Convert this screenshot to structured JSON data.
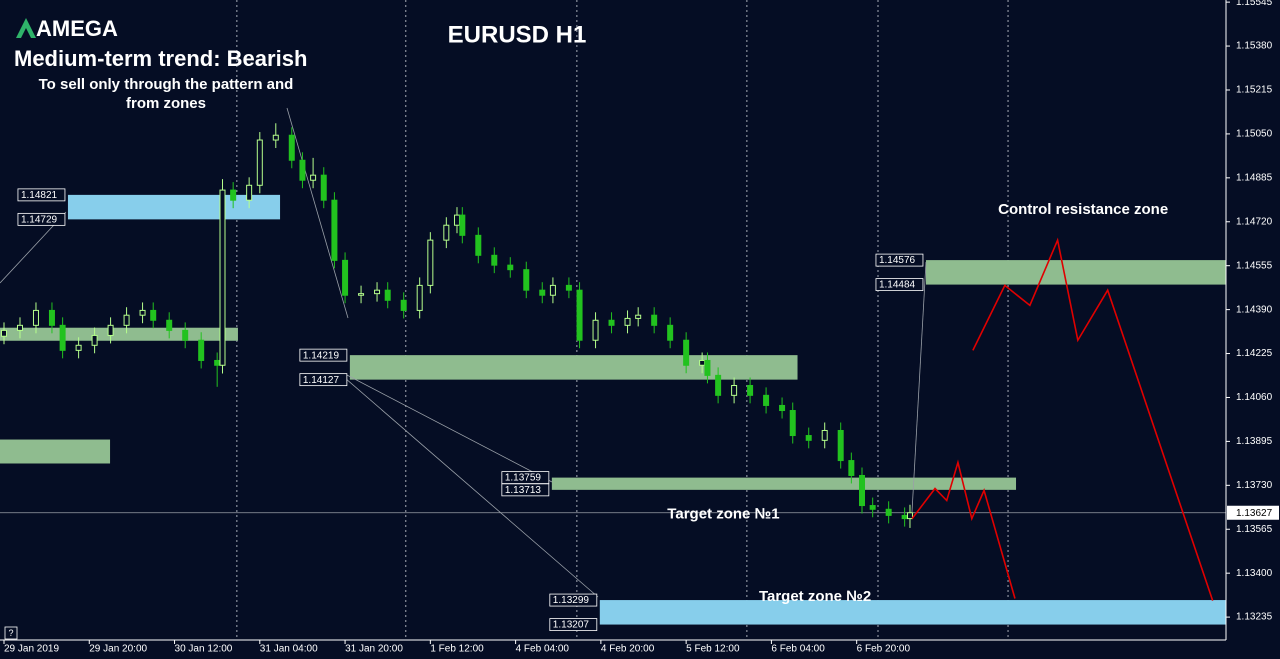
{
  "chart_data": {
    "type": "candlestick",
    "brand": "AMEGA",
    "title": "EURUSD H1",
    "trend": "Medium-term trend: Bearish",
    "subtitle_lines": [
      "To sell only through the pattern and",
      "from zones"
    ],
    "up_color": "#b6ff8c",
    "down_color": "#22c21f",
    "grid": true,
    "xlim": [
      -0.75,
      229.3
    ],
    "ylim": [
      1.13149,
      1.15553
    ],
    "xticks": [
      {
        "value": 0,
        "label": "29 Jan 2019"
      },
      {
        "value": 16,
        "label": "29 Jan 20:00"
      },
      {
        "value": 32,
        "label": "30 Jan 12:00"
      },
      {
        "value": 48,
        "label": "31 Jan 04:00"
      },
      {
        "value": 64,
        "label": "31 Jan 20:00"
      },
      {
        "value": 80,
        "label": "1 Feb 12:00"
      },
      {
        "value": 96,
        "label": "4 Feb 04:00"
      },
      {
        "value": 112,
        "label": "4 Feb 20:00"
      },
      {
        "value": 128,
        "label": "5 Feb 12:00"
      },
      {
        "value": 144,
        "label": "6 Feb 04:00"
      },
      {
        "value": 160,
        "label": "6 Feb 20:00"
      }
    ],
    "yticks": [
      1.15545,
      {
        "value": 1.1538,
        "label": "1.15380"
      },
      1.15215,
      {
        "value": 1.1505,
        "label": "1.15050"
      },
      1.14885,
      {
        "value": 1.1472,
        "label": "1.14720"
      },
      1.14555,
      {
        "value": 1.1439,
        "label": "1.14390"
      },
      1.14225,
      {
        "value": 1.1406,
        "label": "1.14060"
      },
      1.13895,
      {
        "value": 1.1373,
        "label": "1.13730"
      },
      1.13565,
      {
        "value": 1.134,
        "label": "1.13400"
      },
      1.13235
    ],
    "separators": [
      43.7,
      75.4,
      107.5,
      139.4,
      164.0,
      188.4
    ],
    "x": [
      0,
      3,
      6,
      9,
      11,
      14,
      17,
      20,
      23,
      26,
      28,
      31,
      34,
      37,
      40,
      41,
      43,
      46,
      48,
      51,
      54,
      56,
      58,
      60,
      62,
      64,
      67,
      70,
      72,
      75,
      78,
      80,
      83,
      85,
      86,
      89,
      92,
      95,
      98,
      101,
      103,
      106,
      108,
      111,
      114,
      117,
      119,
      122,
      125,
      128,
      131,
      132,
      134,
      137,
      140,
      143,
      146,
      148,
      151,
      154,
      157,
      159,
      161,
      163,
      166,
      169,
      170
    ],
    "open": [
      1.1429,
      1.14312,
      1.14331,
      1.14387,
      1.14331,
      1.14237,
      1.14256,
      1.14293,
      1.14331,
      1.14369,
      1.14387,
      1.1435,
      1.14312,
      1.14275,
      1.14199,
      1.14181,
      1.14839,
      1.14801,
      1.14857,
      1.15027,
      1.15045,
      1.14951,
      1.14876,
      1.14895,
      1.14801,
      1.14575,
      1.14444,
      1.1445,
      1.14463,
      1.14425,
      1.14387,
      1.14481,
      1.14651,
      1.14707,
      1.14745,
      1.14669,
      1.14594,
      1.14557,
      1.1454,
      1.14463,
      1.14444,
      1.14481,
      1.14463,
      1.14275,
      1.1435,
      1.14331,
      1.14357,
      1.14369,
      1.14331,
      1.14275,
      1.14181,
      1.14199,
      1.14143,
      1.14068,
      1.14105,
      1.14068,
      1.1403,
      1.14011,
      1.13917,
      1.13899,
      1.13936,
      1.13823,
      1.13767,
      1.13654,
      1.1364,
      1.13617,
      1.13605
    ],
    "high": [
      1.14342,
      1.14361,
      1.14417,
      1.14417,
      1.14361,
      1.14286,
      1.14323,
      1.14361,
      1.14399,
      1.14417,
      1.14417,
      1.1438,
      1.14342,
      1.14305,
      1.14229,
      1.1488,
      1.14869,
      1.14887,
      1.15057,
      1.1509,
      1.15075,
      1.14981,
      1.1496,
      1.14925,
      1.14831,
      1.14605,
      1.1448,
      1.14493,
      1.14493,
      1.14455,
      1.14511,
      1.14681,
      1.14737,
      1.14775,
      1.14775,
      1.14699,
      1.14624,
      1.14587,
      1.1457,
      1.14493,
      1.14511,
      1.14511,
      1.14493,
      1.1438,
      1.1438,
      1.14387,
      1.14399,
      1.14399,
      1.14361,
      1.14305,
      1.14229,
      1.14229,
      1.14173,
      1.14135,
      1.14135,
      1.14098,
      1.1406,
      1.14041,
      1.13947,
      1.13966,
      1.13966,
      1.13853,
      1.13797,
      1.13684,
      1.1367,
      1.13647,
      1.13657
    ],
    "low": [
      1.1426,
      1.14282,
      1.14301,
      1.14301,
      1.14207,
      1.14207,
      1.14226,
      1.14263,
      1.14301,
      1.14339,
      1.1432,
      1.14282,
      1.14245,
      1.14169,
      1.141,
      1.1415,
      1.14771,
      1.14771,
      1.14827,
      1.14997,
      1.14921,
      1.14846,
      1.14846,
      1.14771,
      1.14545,
      1.14414,
      1.14414,
      1.1442,
      1.14395,
      1.14357,
      1.14357,
      1.14451,
      1.14621,
      1.14677,
      1.14639,
      1.14564,
      1.14527,
      1.1451,
      1.14433,
      1.14414,
      1.14414,
      1.14433,
      1.14245,
      1.14245,
      1.14301,
      1.14301,
      1.14327,
      1.14301,
      1.14245,
      1.14151,
      1.14151,
      1.14113,
      1.14038,
      1.14038,
      1.14038,
      1.14,
      1.13981,
      1.13887,
      1.13869,
      1.13869,
      1.13793,
      1.13737,
      1.13624,
      1.1361,
      1.13587,
      1.13575,
      1.1357
    ],
    "close": [
      1.14312,
      1.14331,
      1.14387,
      1.14331,
      1.14237,
      1.14256,
      1.14293,
      1.14331,
      1.14369,
      1.14387,
      1.1435,
      1.14312,
      1.14275,
      1.14199,
      1.14181,
      1.14839,
      1.14801,
      1.14857,
      1.15027,
      1.15045,
      1.14951,
      1.14876,
      1.14895,
      1.14801,
      1.14575,
      1.14444,
      1.1445,
      1.14463,
      1.14425,
      1.14387,
      1.14481,
      1.14651,
      1.14707,
      1.14745,
      1.14669,
      1.14594,
      1.14557,
      1.1454,
      1.14463,
      1.14444,
      1.14481,
      1.14463,
      1.14275,
      1.1435,
      1.14331,
      1.14357,
      1.14369,
      1.14331,
      1.14275,
      1.14181,
      1.14199,
      1.14143,
      1.14068,
      1.14105,
      1.14068,
      1.1403,
      1.14011,
      1.13917,
      1.13899,
      1.13936,
      1.13823,
      1.13767,
      1.13654,
      1.1364,
      1.13617,
      1.13605,
      1.13627
    ],
    "current_price": 1.13627,
    "zones": [
      {
        "high": 1.14821,
        "low": 1.14729,
        "x": [
          12.0,
          51.8
        ],
        "color": "#87ceeb"
      },
      {
        "high": 1.14219,
        "low": 1.14127,
        "x": [
          64.9,
          148.9
        ],
        "color": "#8fbc8f"
      },
      {
        "high": 1.13759,
        "low": 1.13713,
        "x": [
          102.8,
          189.9
        ],
        "color": "#8fbc8f"
      },
      {
        "high": 1.13299,
        "low": 1.13207,
        "x": [
          111.8,
          229.3
        ],
        "color": "#87ceeb"
      },
      {
        "high": 1.14576,
        "low": 1.14484,
        "x": [
          173.0,
          229.3
        ],
        "color": "#8fbc8f"
      }
    ],
    "unlabeled_zones": [
      {
        "high": 1.14322,
        "low": 1.14273,
        "x": [
          -0.75,
          43.9
        ],
        "color": "#8fbc8f"
      },
      {
        "high": 1.13902,
        "low": 1.13812,
        "x": [
          -0.75,
          19.9
        ],
        "color": "#8fbc8f"
      }
    ],
    "forecast": [
      {
        "color": "#e00000",
        "x": [
          170.4,
          174.7,
          176.9,
          179.0,
          181.6,
          183.9,
          189.7
        ],
        "values": [
          1.13605,
          1.13718,
          1.13673,
          1.13816,
          1.13605,
          1.13711,
          1.13305
        ]
      },
      {
        "color": "#e00000",
        "x": [
          181.8,
          187.8,
          192.5,
          197.7,
          201.5,
          207.1,
          226.8
        ],
        "values": [
          1.14237,
          1.14481,
          1.14406,
          1.14651,
          1.14275,
          1.14463,
          1.13297
        ]
      }
    ],
    "annotations": [
      {
        "text": "Control resistance zone",
        "x": 202.5,
        "y": 1.14765
      },
      {
        "text": "Target zone №1",
        "x": 135.0,
        "y": 1.1362
      },
      {
        "text": "Target zone №2",
        "x": 152.2,
        "y": 1.13311
      }
    ]
  }
}
